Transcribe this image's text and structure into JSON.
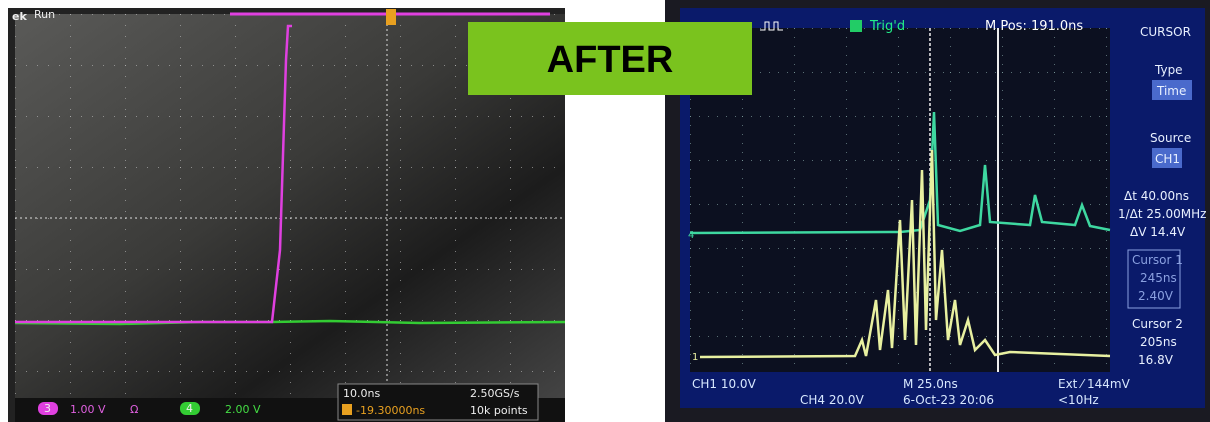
{
  "overlay": {
    "label": "AFTER"
  },
  "left_scope": {
    "brand": "ek",
    "status": "Run",
    "ch3_marker": "3",
    "ch3_scale": "1.00 V",
    "ch3_coupling": "Ω",
    "ch4_marker": "4",
    "ch4_scale": "2.00 V",
    "timebase": "10.0ns",
    "sample_rate": "2.50GS/s",
    "trigger_offset": "-19.30000ns",
    "record_length": "10k points"
  },
  "right_scope": {
    "status": "Trig'd",
    "position": "M Pos: 191.0ns",
    "menu_title": "CURSOR",
    "type_label": "Type",
    "type_value": "Time",
    "source_label": "Source",
    "source_value": "CH1",
    "delta_t": "Δt 40.00ns",
    "inv_delta_t": "1/Δt 25.00MHz",
    "delta_v": "ΔV 14.4V",
    "cursor1_label": "Cursor 1",
    "cursor1_time": "245ns",
    "cursor1_volt": "2.40V",
    "cursor2_label": "Cursor 2",
    "cursor2_time": "205ns",
    "cursor2_volt": "16.8V",
    "ch1_scale": "CH1 10.0V",
    "ch4_scale": "CH4 20.0V",
    "timebase": "M 25.0ns",
    "trigger": "Ext ⁄ 144mV",
    "date": "6-Oct-23 20:06",
    "frequency": "<10Hz",
    "ch1_marker": "1",
    "ch4_marker": "4"
  }
}
